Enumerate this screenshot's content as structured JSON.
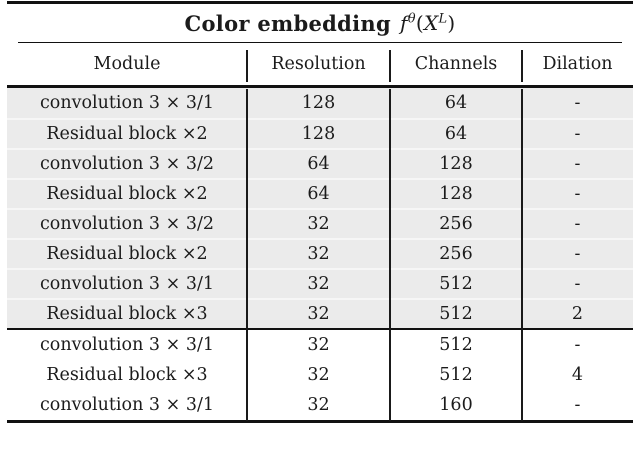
{
  "title": {
    "text": "Color embedding",
    "math": {
      "f": "f",
      "f_sup": "θ",
      "open": "(",
      "X": "X",
      "X_sup": "L",
      "close": ")"
    }
  },
  "table": {
    "headers": [
      "Module",
      "Resolution",
      "Channels",
      "Dilation"
    ],
    "rows": [
      {
        "module": "convolution 3 × 3/1",
        "resolution": "128",
        "channels": "64",
        "dilation": "-"
      },
      {
        "module": "Residual block ×2",
        "resolution": "128",
        "channels": "64",
        "dilation": "-"
      },
      {
        "module": "convolution 3 × 3/2",
        "resolution": "64",
        "channels": "128",
        "dilation": "-"
      },
      {
        "module": "Residual block ×2",
        "resolution": "64",
        "channels": "128",
        "dilation": "-"
      },
      {
        "module": "convolution 3 × 3/2",
        "resolution": "32",
        "channels": "256",
        "dilation": "-"
      },
      {
        "module": "Residual block ×2",
        "resolution": "32",
        "channels": "256",
        "dilation": "-"
      },
      {
        "module": "convolution 3 × 3/1",
        "resolution": "32",
        "channels": "512",
        "dilation": "-"
      },
      {
        "module": "Residual block ×3",
        "resolution": "32",
        "channels": "512",
        "dilation": "2"
      },
      {
        "module": "convolution 3 × 3/1",
        "resolution": "32",
        "channels": "512",
        "dilation": "-"
      },
      {
        "module": "Residual block ×3",
        "resolution": "32",
        "channels": "512",
        "dilation": "4"
      },
      {
        "module": "convolution 3 × 3/1",
        "resolution": "32",
        "channels": "160",
        "dilation": "-"
      }
    ],
    "shaded_row_count": 8,
    "colors": {
      "shaded_row_bg": "#ebebeb",
      "rule": "#111111",
      "text": "#1b1b1b"
    }
  }
}
